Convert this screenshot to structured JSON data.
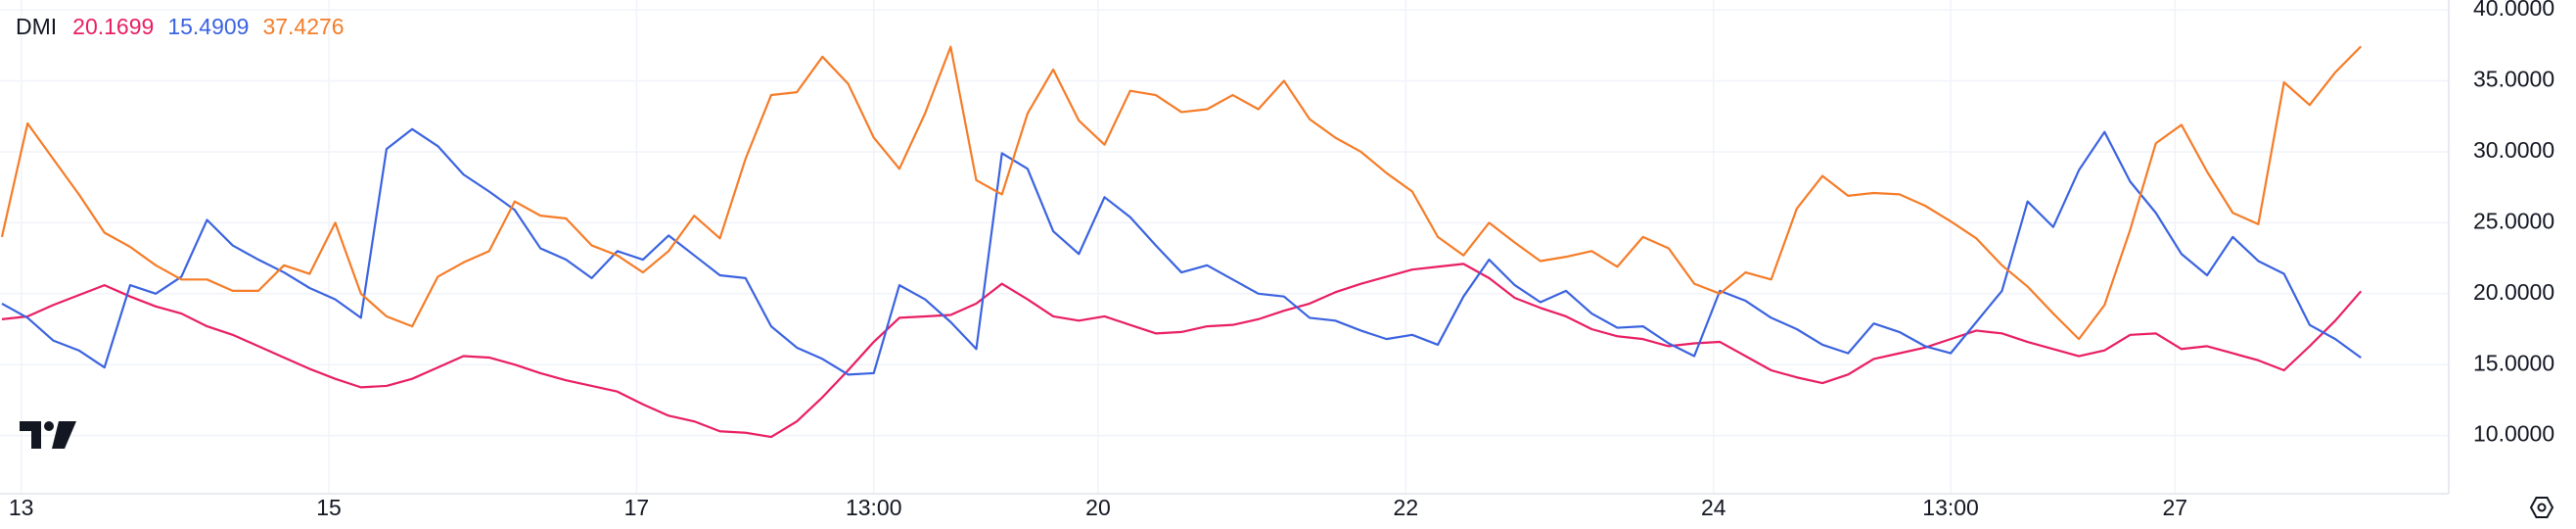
{
  "chart_data": {
    "type": "line",
    "title": "DMI",
    "x": [
      -3,
      1,
      5,
      9,
      13,
      17,
      21,
      25,
      29,
      33,
      37,
      41,
      45,
      49,
      53,
      57,
      61,
      65,
      69,
      73,
      77,
      81,
      85,
      89,
      93,
      97,
      101,
      105,
      109,
      113,
      117,
      121,
      125,
      129,
      133,
      137,
      141,
      145,
      149,
      153,
      157,
      161,
      165,
      169,
      173,
      177,
      181,
      185,
      189,
      193,
      197,
      201,
      205,
      209,
      213,
      217,
      221,
      225,
      229,
      233,
      237,
      241,
      245,
      249,
      253,
      257,
      261,
      265,
      269,
      273,
      277,
      281,
      285,
      289,
      293,
      297,
      301,
      305,
      309,
      313,
      317,
      321,
      325,
      329,
      333,
      337,
      341,
      345,
      349,
      353,
      357,
      361,
      365
    ],
    "xlim": [
      -3.3,
      378.7
    ],
    "xticks": [
      {
        "value": 0,
        "label": "13"
      },
      {
        "value": 48,
        "label": "15"
      },
      {
        "value": 96,
        "label": "17"
      },
      {
        "value": 133,
        "label": "13:00"
      },
      {
        "value": 168,
        "label": "20"
      },
      {
        "value": 216,
        "label": "22"
      },
      {
        "value": 264,
        "label": "24"
      },
      {
        "value": 301,
        "label": "13:00"
      },
      {
        "value": 336,
        "label": "27"
      }
    ],
    "ylim": [
      5.9,
      40.7
    ],
    "yticks": [
      {
        "value": 10,
        "label": "10.0000"
      },
      {
        "value": 15,
        "label": "15.0000"
      },
      {
        "value": 20,
        "label": "20.0000"
      },
      {
        "value": 25,
        "label": "25.0000"
      },
      {
        "value": 30,
        "label": "30.0000"
      },
      {
        "value": 35,
        "label": "35.0000"
      },
      {
        "value": 40,
        "label": "40.0000"
      }
    ],
    "grid": true,
    "series": [
      {
        "color": "#e91e63",
        "values": [
          18.2,
          18.4,
          19.2,
          19.9,
          20.6,
          19.8,
          19.1,
          18.6,
          17.7,
          17.1,
          16.3,
          15.5,
          14.7,
          14,
          13.4,
          13.5,
          14,
          14.8,
          15.6,
          15.5,
          15,
          14.4,
          13.9,
          13.5,
          13.1,
          12.2,
          11.4,
          11,
          10.3,
          10.2,
          9.9,
          11,
          12.7,
          14.6,
          16.6,
          18.3,
          18.4,
          18.5,
          19.3,
          20.7,
          19.6,
          18.4,
          18.1,
          18.4,
          17.8,
          17.2,
          17.3,
          17.7,
          17.8,
          18.2,
          18.8,
          19.3,
          20.1,
          20.7,
          21.2,
          21.7,
          21.9,
          22.1,
          21.1,
          19.7,
          19,
          18.4,
          17.5,
          17,
          16.8,
          16.3,
          16.5,
          16.6,
          15.6,
          14.6,
          14.1,
          13.7,
          14.3,
          15.4,
          15.8,
          16.2,
          16.8,
          17.4,
          17.2,
          16.6,
          16.1,
          15.6,
          16,
          17.1,
          17.2,
          16.1,
          16.3,
          15.8,
          15.3,
          14.6,
          16.3,
          18.1,
          20.1699
        ]
      },
      {
        "color": "#3b63e0",
        "values": [
          19.3,
          18.3,
          16.7,
          16,
          14.8,
          20.6,
          20,
          21.2,
          25.2,
          23.4,
          22.4,
          21.5,
          20.4,
          19.6,
          18.3,
          30.2,
          31.6,
          30.4,
          28.4,
          27.2,
          25.9,
          23.2,
          22.4,
          21.1,
          23,
          22.4,
          24.1,
          22.7,
          21.3,
          21.1,
          17.7,
          16.2,
          15.4,
          14.3,
          14.4,
          20.6,
          19.6,
          18,
          16.1,
          29.9,
          28.8,
          24.4,
          22.8,
          26.8,
          25.4,
          23.4,
          21.5,
          22,
          21,
          20,
          19.8,
          18.3,
          18.1,
          17.4,
          16.8,
          17.1,
          16.4,
          19.8,
          22.4,
          20.6,
          19.4,
          20.2,
          18.6,
          17.6,
          17.7,
          16.5,
          15.6,
          20.2,
          19.5,
          18.3,
          17.5,
          16.4,
          15.8,
          17.9,
          17.3,
          16.3,
          15.8,
          18,
          20.2,
          26.5,
          24.7,
          28.7,
          31.4,
          27.9,
          25.7,
          22.8,
          21.3,
          24,
          22.3,
          21.4,
          17.8,
          16.8,
          15.4909
        ]
      },
      {
        "color": "#f57c28",
        "values": [
          24,
          32,
          29.5,
          27,
          24.3,
          23.3,
          22,
          21,
          21,
          20.2,
          20.2,
          22,
          21.4,
          25,
          20,
          18.4,
          17.7,
          21.2,
          22.2,
          23,
          26.5,
          25.5,
          25.3,
          23.4,
          22.7,
          21.5,
          23,
          25.5,
          23.9,
          29.5,
          34,
          34.2,
          36.7,
          34.8,
          31,
          28.8,
          32.7,
          37.4,
          28,
          27,
          32.7,
          35.8,
          32.2,
          30.5,
          34.3,
          34,
          32.8,
          33,
          34,
          33,
          35,
          32.3,
          31,
          30,
          28.5,
          27.2,
          24,
          22.7,
          25,
          23.6,
          22.3,
          22.6,
          23,
          21.9,
          24,
          23.2,
          20.7,
          20,
          21.5,
          21,
          26,
          28.3,
          26.9,
          27.1,
          27,
          26.2,
          25.1,
          23.9,
          22,
          20.5,
          18.6,
          16.8,
          19.2,
          24.5,
          30.6,
          31.9,
          28.6,
          25.7,
          24.9,
          34.9,
          33.3,
          35.6,
          37.4276
        ]
      }
    ]
  }
}
